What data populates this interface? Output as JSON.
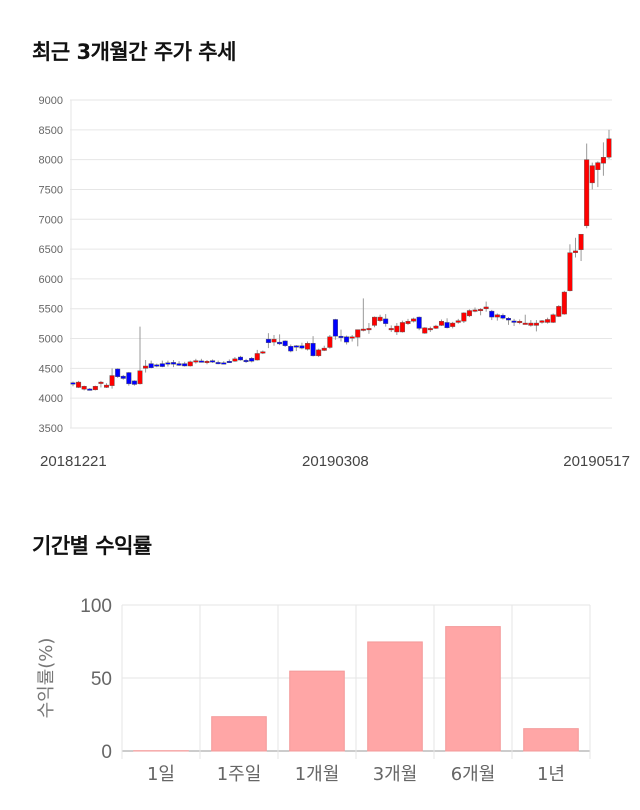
{
  "price_section": {
    "title": "최근 3개월간 주가 추세"
  },
  "return_section": {
    "title": "기간별 수익률"
  },
  "colors": {
    "up": "#ff0000",
    "down": "#0000ff",
    "bar": "#ffa6a6",
    "grid": "#e6e6e6"
  },
  "chart_data": [
    {
      "type": "candlestick",
      "title": "최근 3개월간 주가 추세",
      "ylim": [
        3500,
        9000
      ],
      "yticks": [
        3500,
        4000,
        4500,
        5000,
        5500,
        6000,
        6500,
        7000,
        7500,
        8000,
        8500,
        9000
      ],
      "xlabels": [
        "20181221",
        "20190308",
        "20190517"
      ],
      "xlabel_index": [
        0,
        47,
        96
      ],
      "ohlc": [
        [
          4260,
          4280,
          4200,
          4240
        ],
        [
          4180,
          4290,
          4170,
          4270
        ],
        [
          4150,
          4210,
          4130,
          4200
        ],
        [
          4155,
          4170,
          4130,
          4150
        ],
        [
          4140,
          4210,
          4130,
          4200
        ],
        [
          4270,
          4290,
          4180,
          4270
        ],
        [
          4180,
          4250,
          4170,
          4220
        ],
        [
          4210,
          4500,
          4160,
          4380
        ],
        [
          4490,
          4500,
          4340,
          4360
        ],
        [
          4370,
          4390,
          4310,
          4330
        ],
        [
          4430,
          4440,
          4210,
          4240
        ],
        [
          4290,
          4300,
          4210,
          4230
        ],
        [
          4240,
          5200,
          4230,
          4460
        ],
        [
          4500,
          4640,
          4430,
          4540
        ],
        [
          4580,
          4630,
          4500,
          4510
        ],
        [
          4560,
          4580,
          4520,
          4540
        ],
        [
          4580,
          4630,
          4520,
          4530
        ],
        [
          4595,
          4630,
          4530,
          4590
        ],
        [
          4600,
          4640,
          4520,
          4570
        ],
        [
          4580,
          4620,
          4540,
          4550
        ],
        [
          4580,
          4610,
          4530,
          4540
        ],
        [
          4540,
          4630,
          4530,
          4610
        ],
        [
          4610,
          4660,
          4580,
          4630
        ],
        [
          4625,
          4660,
          4600,
          4620
        ],
        [
          4600,
          4640,
          4570,
          4620
        ],
        [
          4630,
          4650,
          4590,
          4610
        ],
        [
          4600,
          4630,
          4570,
          4580
        ],
        [
          4595,
          4620,
          4570,
          4590
        ],
        [
          4620,
          4650,
          4590,
          4600
        ],
        [
          4620,
          4690,
          4610,
          4660
        ],
        [
          4690,
          4710,
          4630,
          4640
        ],
        [
          4635,
          4660,
          4590,
          4630
        ],
        [
          4670,
          4690,
          4600,
          4620
        ],
        [
          4640,
          4810,
          4630,
          4750
        ],
        [
          4760,
          4800,
          4740,
          4780
        ],
        [
          4990,
          5090,
          4840,
          4930
        ],
        [
          4940,
          5060,
          4880,
          4990
        ],
        [
          4940,
          5070,
          4890,
          4910
        ],
        [
          4960,
          4970,
          4860,
          4880
        ],
        [
          4870,
          4900,
          4770,
          4790
        ],
        [
          4880,
          4890,
          4790,
          4860
        ],
        [
          4880,
          4930,
          4820,
          4840
        ],
        [
          4820,
          4950,
          4800,
          4920
        ],
        [
          4920,
          5040,
          4700,
          4710
        ],
        [
          4710,
          4830,
          4690,
          4810
        ],
        [
          4800,
          4880,
          4790,
          4840
        ],
        [
          4850,
          5060,
          4830,
          5030
        ],
        [
          5320,
          5330,
          4980,
          5040
        ],
        [
          5040,
          5150,
          4950,
          5030
        ],
        [
          5030,
          5050,
          4900,
          4940
        ],
        [
          5030,
          5060,
          4950,
          5030
        ],
        [
          5020,
          5130,
          4870,
          5150
        ],
        [
          5150,
          5673,
          5120,
          5160
        ],
        [
          5160,
          5260,
          5080,
          5170
        ],
        [
          5220,
          5370,
          5190,
          5360
        ],
        [
          5300,
          5400,
          5280,
          5360
        ],
        [
          5330,
          5410,
          5200,
          5250
        ],
        [
          5170,
          5220,
          5110,
          5170
        ],
        [
          5110,
          5260,
          5060,
          5210
        ],
        [
          5110,
          5300,
          5100,
          5270
        ],
        [
          5250,
          5330,
          5230,
          5290
        ],
        [
          5290,
          5350,
          5270,
          5330
        ],
        [
          5360,
          5370,
          5140,
          5170
        ],
        [
          5090,
          5190,
          5080,
          5180
        ],
        [
          5170,
          5200,
          5110,
          5170
        ],
        [
          5170,
          5230,
          5160,
          5210
        ],
        [
          5220,
          5320,
          5210,
          5290
        ],
        [
          5270,
          5340,
          5170,
          5180
        ],
        [
          5200,
          5280,
          5170,
          5260
        ],
        [
          5270,
          5330,
          5250,
          5300
        ],
        [
          5290,
          5440,
          5260,
          5430
        ],
        [
          5380,
          5490,
          5360,
          5470
        ],
        [
          5460,
          5520,
          5440,
          5480
        ],
        [
          5470,
          5510,
          5390,
          5490
        ],
        [
          5500,
          5620,
          5450,
          5530
        ],
        [
          5460,
          5480,
          5310,
          5360
        ],
        [
          5360,
          5420,
          5300,
          5400
        ],
        [
          5390,
          5420,
          5320,
          5340
        ],
        [
          5340,
          5360,
          5230,
          5310
        ],
        [
          5295,
          5330,
          5210,
          5290
        ],
        [
          5290,
          5320,
          5240,
          5290
        ],
        [
          5260,
          5400,
          5240,
          5260
        ],
        [
          5220,
          5310,
          5200,
          5260
        ],
        [
          5220,
          5310,
          5120,
          5260
        ],
        [
          5270,
          5310,
          5250,
          5300
        ],
        [
          5270,
          5350,
          5250,
          5320
        ],
        [
          5270,
          5420,
          5260,
          5400
        ],
        [
          5370,
          5560,
          5360,
          5540
        ],
        [
          5410,
          5800,
          5400,
          5780
        ],
        [
          5800,
          6580,
          5790,
          6440
        ],
        [
          6440,
          6690,
          6360,
          6470
        ],
        [
          6490,
          6700,
          6300,
          6750
        ],
        [
          6890,
          8270,
          6850,
          8000
        ],
        [
          7610,
          7950,
          7500,
          7900
        ],
        [
          7830,
          7970,
          7540,
          7950
        ],
        [
          7940,
          8290,
          7730,
          8040
        ],
        [
          8040,
          8500,
          8010,
          8350
        ]
      ]
    },
    {
      "type": "bar",
      "title": "기간별 수익률",
      "ylabel": "수익률(%)",
      "ylim": [
        0,
        100
      ],
      "yticks": [
        0,
        50,
        100
      ],
      "categories": [
        "1일",
        "1주일",
        "1개월",
        "3개월",
        "6개월",
        "1년"
      ],
      "values": [
        0.2,
        23.5,
        54.7,
        74.7,
        85.2,
        15.3
      ]
    }
  ]
}
